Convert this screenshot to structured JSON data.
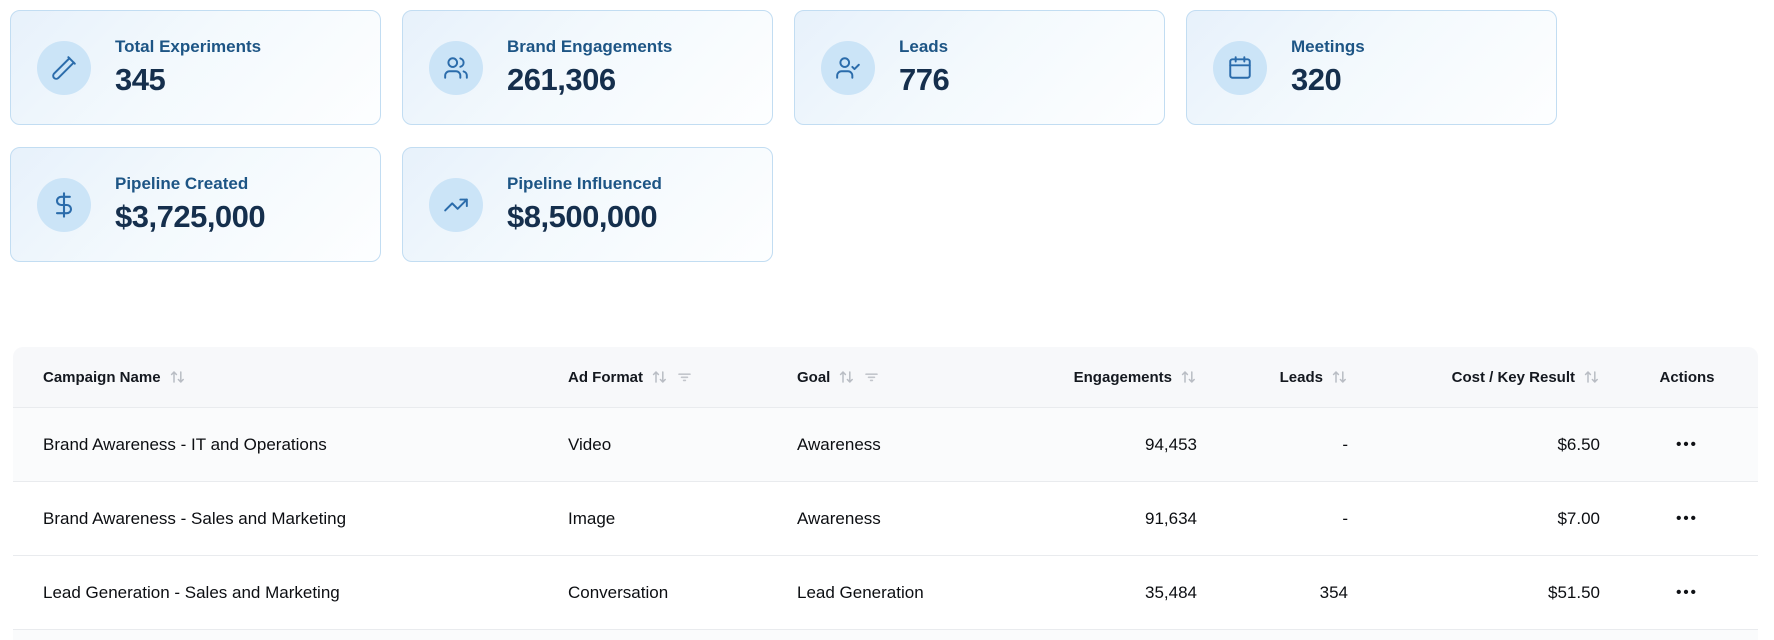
{
  "stats": {
    "cards": [
      {
        "label": "Total Experiments",
        "value": "345",
        "icon": "test-tube-icon"
      },
      {
        "label": "Brand Engagements",
        "value": "261,306",
        "icon": "users-icon"
      },
      {
        "label": "Leads",
        "value": "776",
        "icon": "user-check-icon"
      },
      {
        "label": "Meetings",
        "value": "320",
        "icon": "calendar-icon"
      },
      {
        "label": "Pipeline Created",
        "value": "$3,725,000",
        "icon": "dollar-sign-icon"
      },
      {
        "label": "Pipeline Influenced",
        "value": "$8,500,000",
        "icon": "trending-up-icon"
      }
    ]
  },
  "table": {
    "columns": [
      {
        "label": "Campaign Name",
        "field": "campaign_name",
        "align": "left",
        "sortable": true,
        "filterable": false
      },
      {
        "label": "Ad Format",
        "field": "ad_format",
        "align": "left",
        "sortable": true,
        "filterable": true
      },
      {
        "label": "Goal",
        "field": "goal",
        "align": "left",
        "sortable": true,
        "filterable": true
      },
      {
        "label": "Engagements",
        "field": "engagements",
        "align": "right",
        "sortable": true,
        "filterable": false
      },
      {
        "label": "Leads",
        "field": "leads",
        "align": "right",
        "sortable": true,
        "filterable": false
      },
      {
        "label": "Cost / Key Result",
        "field": "cost_key_result",
        "align": "right",
        "sortable": true,
        "filterable": false
      },
      {
        "label": "Actions",
        "field": "actions",
        "align": "center",
        "sortable": false,
        "filterable": false
      }
    ],
    "rows": [
      {
        "campaign_name": "Brand Awareness - IT and Operations",
        "ad_format": "Video",
        "goal": "Awareness",
        "engagements": "94,453",
        "leads": "-",
        "cost_key_result": "$6.50"
      },
      {
        "campaign_name": "Brand Awareness - Sales and Marketing",
        "ad_format": "Image",
        "goal": "Awareness",
        "engagements": "91,634",
        "leads": "-",
        "cost_key_result": "$7.00"
      },
      {
        "campaign_name": "Lead Generation - Sales and Marketing",
        "ad_format": "Conversation",
        "goal": "Lead Generation",
        "engagements": "35,484",
        "leads": "354",
        "cost_key_result": "$51.50"
      }
    ],
    "row_actions_label": "•••"
  },
  "colors": {
    "card_border": "#c2ddf2",
    "card_gradient_start": "#e7f1fb",
    "card_gradient_end": "#fdfeff",
    "icon_circle": "#cbe4f7",
    "icon_stroke": "#2b6cab",
    "card_label_text": "#1d5585",
    "card_value_text": "#152f4d",
    "table_header_bg": "#f7f8fa",
    "row_stripe_bg": "#fafbfc",
    "divider": "#e9ebee",
    "sort_icon": "#b9bdc4"
  }
}
